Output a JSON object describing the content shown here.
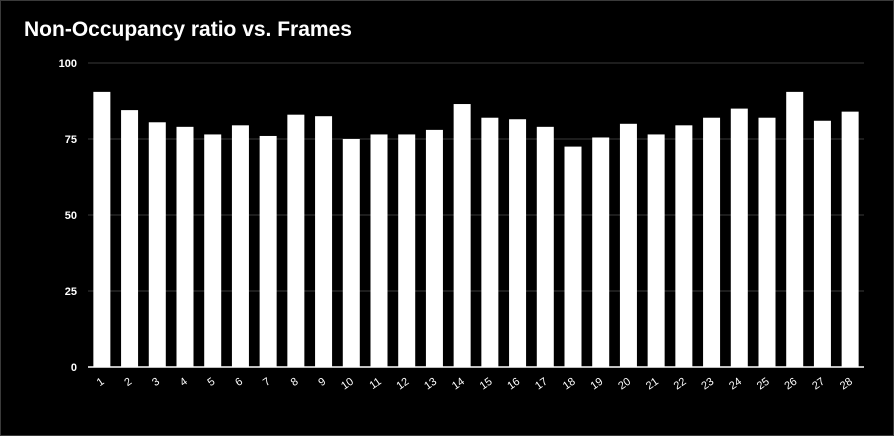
{
  "chart_data": {
    "type": "bar",
    "title": "Non-Occupancy ratio vs. Frames",
    "xlabel": "",
    "ylabel": "",
    "categories": [
      "1",
      "2",
      "3",
      "4",
      "5",
      "6",
      "7",
      "8",
      "9",
      "10",
      "11",
      "12",
      "13",
      "14",
      "15",
      "16",
      "17",
      "18",
      "19",
      "20",
      "21",
      "22",
      "23",
      "24",
      "25",
      "26",
      "27",
      "28"
    ],
    "values": [
      90.5,
      84.5,
      80.5,
      79,
      76.5,
      79.5,
      76,
      83,
      82.5,
      75,
      76.5,
      76.5,
      78,
      86.5,
      82,
      81.5,
      79,
      72.5,
      75.5,
      80,
      76.5,
      79.5,
      82,
      85,
      82,
      90.5,
      81,
      84
    ],
    "ylim": [
      0,
      100
    ],
    "yticks": [
      0,
      25,
      50,
      75,
      100
    ],
    "grid": true,
    "legend": "none",
    "colors": {
      "background": "#000000",
      "bar": "#ffffff",
      "grid": "#3a3a3a",
      "text": "#ffffff"
    }
  }
}
